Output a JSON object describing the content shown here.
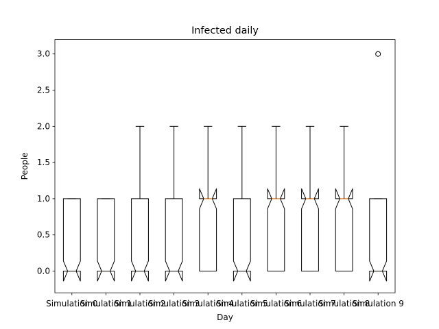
{
  "chart_data": {
    "type": "boxplot",
    "title": "Infected daily",
    "xlabel": "Day",
    "ylabel": "People",
    "ylim": [
      -0.3,
      3.2
    ],
    "yticks": [
      "0.0",
      "0.5",
      "1.0",
      "1.5",
      "2.0",
      "2.5",
      "3.0"
    ],
    "notched": true,
    "grid": false,
    "median_color": "#ff7f0e",
    "box_color": "#000000",
    "categories": [
      "Simulation 0",
      "Simulation 1",
      "Simulation 2",
      "Simulation 3",
      "Simulation 4",
      "Simulation 5",
      "Simulation 6",
      "Simulation 7",
      "Simulation 8",
      "Simulation 9"
    ],
    "boxes": [
      {
        "whislo": 0,
        "q1": 0,
        "med": 0,
        "q3": 1,
        "whishi": 1,
        "notch_lo": -0.14,
        "notch_hi": 0.14,
        "fliers": []
      },
      {
        "whislo": 0,
        "q1": 0,
        "med": 0,
        "q3": 1,
        "whishi": 1,
        "notch_lo": -0.14,
        "notch_hi": 0.14,
        "fliers": []
      },
      {
        "whislo": 0,
        "q1": 0,
        "med": 0,
        "q3": 1,
        "whishi": 2,
        "notch_lo": -0.14,
        "notch_hi": 0.14,
        "fliers": []
      },
      {
        "whislo": 0,
        "q1": 0,
        "med": 0,
        "q3": 1,
        "whishi": 2,
        "notch_lo": -0.14,
        "notch_hi": 0.14,
        "fliers": []
      },
      {
        "whislo": 0,
        "q1": 0,
        "med": 1,
        "q3": 1,
        "whishi": 2,
        "notch_lo": 0.86,
        "notch_hi": 1.14,
        "fliers": []
      },
      {
        "whislo": 0,
        "q1": 0,
        "med": 0,
        "q3": 1,
        "whishi": 2,
        "notch_lo": -0.14,
        "notch_hi": 0.14,
        "fliers": []
      },
      {
        "whislo": 0,
        "q1": 0,
        "med": 1,
        "q3": 1,
        "whishi": 2,
        "notch_lo": 0.86,
        "notch_hi": 1.14,
        "fliers": []
      },
      {
        "whislo": 0,
        "q1": 0,
        "med": 1,
        "q3": 1,
        "whishi": 2,
        "notch_lo": 0.86,
        "notch_hi": 1.14,
        "fliers": []
      },
      {
        "whislo": 0,
        "q1": 0,
        "med": 1,
        "q3": 1,
        "whishi": 2,
        "notch_lo": 0.86,
        "notch_hi": 1.14,
        "fliers": []
      },
      {
        "whislo": 0,
        "q1": 0,
        "med": 0,
        "q3": 1,
        "whishi": 1,
        "notch_lo": -0.14,
        "notch_hi": 0.14,
        "fliers": [
          3
        ]
      }
    ]
  }
}
